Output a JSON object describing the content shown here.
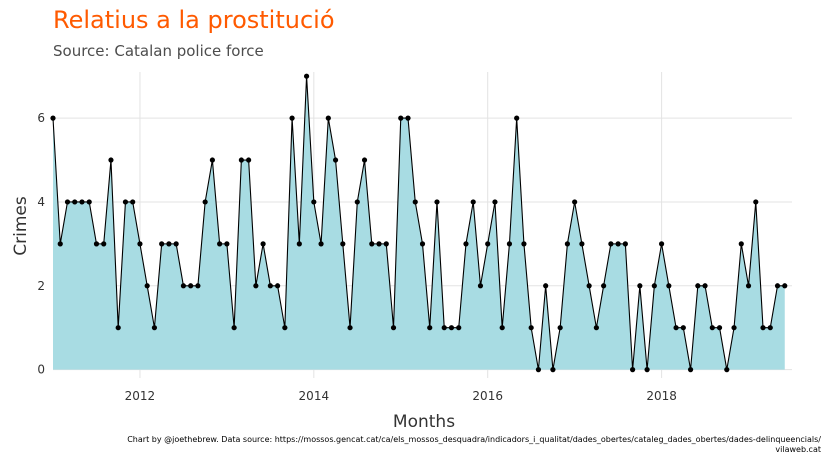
{
  "chart_data": {
    "type": "area",
    "title": "Relatius a la prostitució",
    "subtitle": "Source: Catalan police force",
    "xlabel": "Months",
    "ylabel": "Crimes",
    "caption": "Chart by @joethebrew. Data source: https://mossos.gencat.cat/ca/els_mossos_desquadra/indicadors_i_qualitat/dades_obertes/cataleg_dades_obertes/dades-delinqueencials/ vilaweb.cat",
    "x_start": "2011-01",
    "x_interval": "month",
    "xlim": [
      2011.0,
      2019.5
    ],
    "x_ticks": [
      2012,
      2014,
      2016,
      2018
    ],
    "x_tick_labels": [
      "2012",
      "2014",
      "2016",
      "2018"
    ],
    "ylim": [
      -0.2,
      7.1
    ],
    "y_ticks": [
      0,
      2,
      4,
      6
    ],
    "y_tick_labels": [
      "0",
      "2",
      "4",
      "6"
    ],
    "grid": true,
    "colors": {
      "title": "#FF5A00",
      "area_fill": "#A8DCE3",
      "line": "#000000",
      "grid": "#E3E3E3"
    },
    "values": [
      6,
      3,
      4,
      4,
      4,
      4,
      3,
      3,
      5,
      1,
      4,
      4,
      3,
      2,
      1,
      3,
      3,
      3,
      2,
      2,
      2,
      4,
      5,
      3,
      3,
      1,
      5,
      5,
      2,
      3,
      2,
      2,
      1,
      6,
      3,
      7,
      4,
      3,
      6,
      5,
      3,
      1,
      4,
      5,
      3,
      3,
      3,
      1,
      6,
      6,
      4,
      3,
      1,
      4,
      1,
      1,
      1,
      3,
      4,
      2,
      3,
      4,
      1,
      3,
      6,
      3,
      1,
      0,
      2,
      0,
      1,
      3,
      4,
      3,
      2,
      1,
      2,
      3,
      3,
      3,
      0,
      2,
      0,
      2,
      3,
      2,
      1,
      1,
      0,
      2,
      2,
      1,
      1,
      0,
      1,
      3,
      2,
      4,
      1,
      1,
      2,
      2
    ]
  }
}
